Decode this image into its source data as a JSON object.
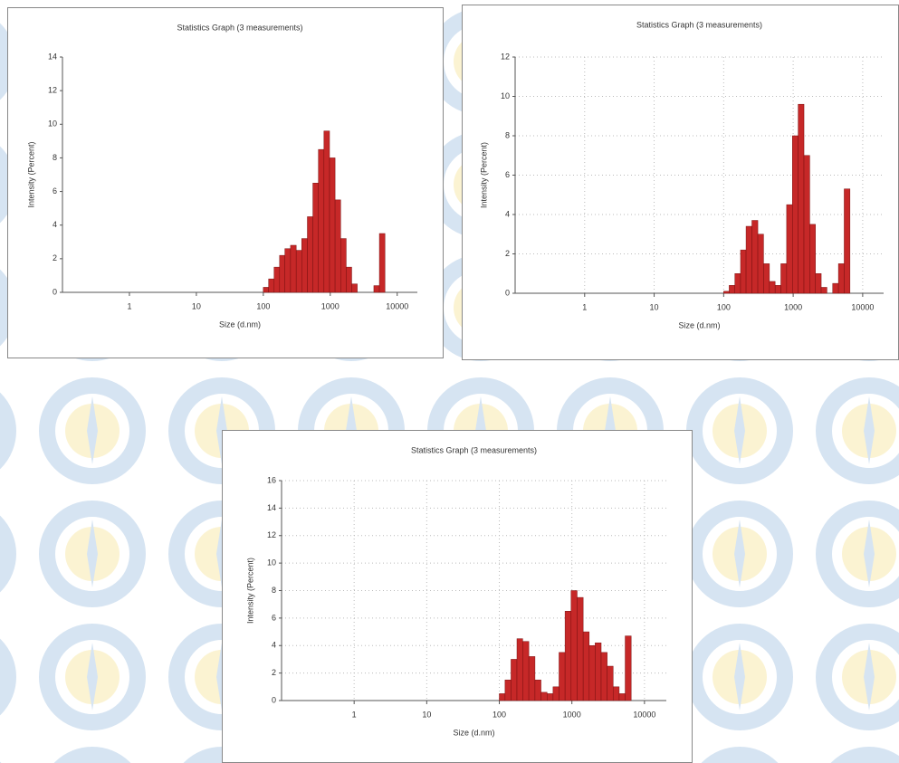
{
  "chart_data": [
    {
      "type": "histogram",
      "title": "Statistics Graph (3 measurements)",
      "x_label": "Size (d.nm)",
      "y_label": "Intensity (Percent)",
      "xscale": "log",
      "xlim": [
        0.1,
        20000
      ],
      "xticks": [
        1,
        10,
        100,
        1000,
        10000
      ],
      "ylim": [
        0,
        14
      ],
      "yticks": [
        0,
        2,
        4,
        6,
        8,
        10,
        12,
        14
      ],
      "grid": false,
      "color": "#c62828",
      "bins": [
        100,
        120,
        145,
        175,
        210,
        255,
        310,
        375,
        455,
        550,
        665,
        805,
        975,
        1180,
        1430,
        1730,
        2090,
        2530,
        3060,
        3700,
        4480,
        5420,
        6560
      ],
      "values": [
        0.3,
        0.8,
        1.5,
        2.2,
        2.6,
        2.8,
        2.5,
        3.2,
        4.5,
        6.5,
        8.5,
        9.6,
        8,
        5.5,
        3.2,
        1.5,
        0.5,
        0,
        0,
        0,
        0.4,
        3.5
      ]
    },
    {
      "type": "histogram",
      "title": "Statistics Graph (3 measurements)",
      "x_label": "Size (d.nm)",
      "y_label": "Intensity (Percent)",
      "xscale": "log",
      "xlim": [
        0.1,
        20000
      ],
      "xticks": [
        1,
        10,
        100,
        1000,
        10000
      ],
      "ylim": [
        0,
        12
      ],
      "yticks": [
        0,
        2,
        4,
        6,
        8,
        10,
        12
      ],
      "grid": true,
      "color": "#c62828",
      "bins": [
        100,
        120,
        145,
        175,
        210,
        255,
        310,
        375,
        455,
        550,
        665,
        805,
        975,
        1180,
        1430,
        1730,
        2090,
        2530,
        3060,
        3700,
        4480,
        5420,
        6560
      ],
      "values": [
        0.1,
        0.4,
        1,
        2.2,
        3.4,
        3.7,
        3,
        1.5,
        0.6,
        0.4,
        1.5,
        4.5,
        8,
        9.6,
        7,
        3.5,
        1,
        0.3,
        0,
        0.5,
        1.5,
        5.3
      ]
    },
    {
      "type": "histogram",
      "title": "Statistics Graph (3 measurements)",
      "x_label": "Size (d.nm)",
      "y_label": "Intensity (Percent)",
      "xscale": "log",
      "xlim": [
        0.1,
        20000
      ],
      "xticks": [
        1,
        10,
        100,
        1000,
        10000
      ],
      "ylim": [
        0,
        16
      ],
      "yticks": [
        0,
        2,
        4,
        6,
        8,
        10,
        12,
        14,
        16
      ],
      "grid": true,
      "color": "#c62828",
      "bins": [
        100,
        120,
        145,
        175,
        210,
        255,
        310,
        375,
        455,
        550,
        665,
        805,
        975,
        1180,
        1430,
        1730,
        2090,
        2530,
        3060,
        3700,
        4480,
        5420,
        6560
      ],
      "values": [
        0.5,
        1.5,
        3,
        4.5,
        4.3,
        3.2,
        1.5,
        0.6,
        0.5,
        1,
        3.5,
        6.5,
        8,
        7.5,
        5,
        4,
        4.2,
        3.5,
        2.5,
        1,
        0.5,
        4.7
      ]
    }
  ]
}
